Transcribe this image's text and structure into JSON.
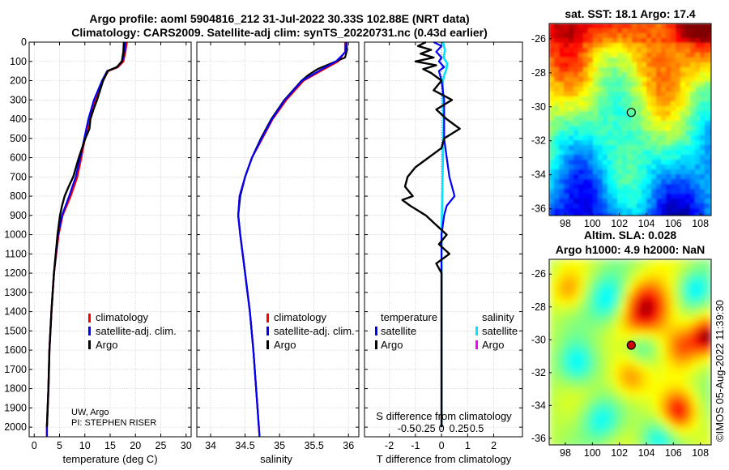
{
  "title_line1": "Argo profile: aoml 5904816_212 31-Jul-2022 30.33S 102.88E (NRT data)",
  "title_line2": "Climatology: CARS2009. Satellite-adj clim: synTS_20220731.nc (0.43d earlier)",
  "colors": {
    "climatology": "#ff0000",
    "satellite": "#0000ff",
    "argo": "#000000",
    "satellite_s": "#00e5ff",
    "argo_s": "#ff00ff"
  },
  "chart_data": [
    {
      "id": "temperature",
      "type": "line",
      "xlabel": "temperature (deg C)",
      "ylabel": "",
      "xlim": [
        -1,
        31
      ],
      "ylim": [
        2050,
        0
      ],
      "xticks": [
        0,
        5,
        10,
        15,
        20,
        25,
        30
      ],
      "yticks": [
        0,
        100,
        200,
        300,
        400,
        500,
        600,
        700,
        800,
        900,
        1000,
        1100,
        1200,
        1300,
        1400,
        1500,
        1600,
        1700,
        1800,
        1900,
        2000
      ],
      "legend": [
        "climatology",
        "satellite-adj. clim.",
        "Argo"
      ],
      "annotation_line1": "UW, Argo",
      "annotation_line2": "PI: STEPHEN RISER",
      "series": [
        {
          "name": "climatology",
          "depth": [
            0,
            50,
            100,
            130,
            150,
            200,
            300,
            400,
            500,
            600,
            700,
            800,
            900,
            1000,
            1200,
            1400,
            1600,
            1800,
            2000,
            2050
          ],
          "values": [
            18.3,
            18.0,
            17.6,
            16.5,
            14.6,
            13.6,
            12.0,
            10.9,
            10.0,
            9.3,
            8.5,
            7.2,
            5.6,
            4.8,
            3.9,
            3.4,
            3.0,
            2.8,
            2.5,
            2.5
          ]
        },
        {
          "name": "satellite-adj. clim.",
          "depth": [
            0,
            50,
            100,
            130,
            150,
            200,
            300,
            400,
            500,
            600,
            700,
            800,
            900,
            1000,
            1200,
            1400,
            1600,
            1800,
            2000,
            2050
          ],
          "values": [
            18.0,
            17.8,
            17.4,
            16.3,
            14.4,
            13.4,
            11.8,
            10.7,
            9.9,
            9.1,
            8.2,
            6.9,
            5.5,
            4.7,
            3.9,
            3.4,
            3.0,
            2.8,
            2.5,
            2.5
          ]
        },
        {
          "name": "Argo",
          "depth": [
            0,
            50,
            100,
            130,
            150,
            200,
            300,
            350,
            400,
            450,
            500,
            600,
            700,
            750,
            800,
            850,
            900,
            1000,
            1200,
            1400,
            1600,
            1800,
            2000
          ],
          "values": [
            17.7,
            17.6,
            17.3,
            16.3,
            14.5,
            13.6,
            12.4,
            11.7,
            11.1,
            10.9,
            10.1,
            8.8,
            7.7,
            6.8,
            6.0,
            5.5,
            5.1,
            4.6,
            3.9,
            3.4,
            3.0,
            2.8,
            2.5
          ]
        }
      ]
    },
    {
      "id": "salinity",
      "type": "line",
      "xlabel": "salinity",
      "ylabel": "",
      "xlim": [
        33.8,
        36.15
      ],
      "ylim": [
        2050,
        0
      ],
      "xticks": [
        34,
        34.5,
        35,
        35.5,
        36
      ],
      "legend": [
        "climatology",
        "satellite-adj. clim.",
        "Argo"
      ],
      "series": [
        {
          "name": "climatology",
          "depth": [
            0,
            50,
            100,
            150,
            200,
            300,
            400,
            500,
            600,
            700,
            800,
            900,
            1000,
            1200,
            1400,
            1600,
            1800,
            2000,
            2050
          ],
          "values": [
            35.95,
            35.95,
            35.85,
            35.6,
            35.35,
            35.1,
            34.9,
            34.75,
            34.6,
            34.5,
            34.42,
            34.4,
            34.43,
            34.5,
            34.57,
            34.62,
            34.66,
            34.7,
            34.71
          ]
        },
        {
          "name": "satellite-adj. clim.",
          "depth": [
            0,
            50,
            100,
            150,
            200,
            300,
            400,
            500,
            600,
            700,
            800,
            900,
            1000,
            1200,
            1400,
            1600,
            1800,
            2000,
            2050
          ],
          "values": [
            35.97,
            35.96,
            35.82,
            35.57,
            35.33,
            35.08,
            34.89,
            34.74,
            34.6,
            34.5,
            34.42,
            34.4,
            34.43,
            34.5,
            34.57,
            34.62,
            34.66,
            34.7,
            34.71
          ]
        },
        {
          "name": "Argo",
          "depth": [
            0,
            40,
            80,
            110,
            140,
            170,
            200,
            300,
            400,
            500,
            600,
            700,
            800,
            900,
            1000,
            1200,
            1400,
            1600,
            1800,
            2000
          ],
          "values": [
            35.97,
            35.98,
            35.95,
            35.75,
            35.55,
            35.42,
            35.32,
            35.07,
            34.88,
            34.73,
            34.6,
            34.5,
            34.43,
            34.4,
            34.43,
            34.5,
            34.57,
            34.62,
            34.66,
            34.7
          ]
        }
      ]
    },
    {
      "id": "difference",
      "type": "line",
      "xlabel": "T difference from climatology",
      "xlabel_top": "S difference from climatology",
      "xlim": [
        -2.95,
        3.1
      ],
      "ylim": [
        2050,
        0
      ],
      "xticks": [
        -2,
        -1,
        0,
        1,
        2
      ],
      "xticks_s": [
        -0.5,
        -0.25,
        0,
        0.25,
        0.5
      ],
      "xticks_s_labels": [
        "-0.5",
        "-0.25",
        "0",
        "0.25",
        "0.5"
      ],
      "legend_temperature_title": "temperature",
      "legend_salinity_title": "salinity",
      "legend_temperature": [
        "satellite",
        "Argo"
      ],
      "legend_salinity": [
        "satellite",
        "Argo"
      ],
      "series": [
        {
          "name": "T satellite",
          "depth": [
            0,
            20,
            50,
            80,
            100,
            130,
            150,
            200,
            300,
            400,
            500,
            600,
            700,
            800,
            850,
            900,
            1000,
            1200,
            1400,
            1600,
            1800,
            2000
          ],
          "values": [
            -0.3,
            0.0,
            -0.2,
            0.0,
            -0.1,
            0.1,
            -0.1,
            0.0,
            0.1,
            0.1,
            0.1,
            0.2,
            0.3,
            0.5,
            0.2,
            0.1,
            0.0,
            0.0,
            0.0,
            0.0,
            0.0,
            0.0
          ]
        },
        {
          "name": "T Argo",
          "depth": [
            0,
            20,
            40,
            60,
            80,
            100,
            120,
            140,
            160,
            200,
            250,
            300,
            350,
            400,
            450,
            500,
            550,
            600,
            650,
            700,
            750,
            800,
            820,
            850,
            900,
            950,
            1000,
            1050,
            1100,
            1150,
            1200,
            1300,
            1400,
            1600,
            1800,
            2000
          ],
          "values": [
            -0.6,
            -0.9,
            -0.4,
            -0.8,
            -0.3,
            -1.0,
            -0.2,
            -0.7,
            -0.4,
            0.0,
            -0.3,
            0.4,
            -0.2,
            0.2,
            0.7,
            0.1,
            0.0,
            -0.5,
            -1.0,
            -1.3,
            -1.4,
            -1.1,
            -1.5,
            -1.2,
            -0.6,
            -0.2,
            0.2,
            -0.1,
            0.3,
            -0.2,
            0.0,
            0.0,
            0.0,
            0.0,
            0.0,
            0.0
          ]
        },
        {
          "name": "S satellite",
          "depth": [
            0,
            40,
            80,
            110,
            140,
            170,
            200,
            300,
            400,
            600,
            800,
            1000,
            1200,
            1500,
            2000
          ],
          "values": [
            0.02,
            0.05,
            0.03,
            0.08,
            0.07,
            0.04,
            0.02,
            0.02,
            0.03,
            0.02,
            0.01,
            0.0,
            0.0,
            0.0,
            0.0
          ]
        }
      ]
    },
    {
      "id": "sst_map",
      "type": "heatmap",
      "title": "sat. SST: 18.1 Argo: 17.4",
      "xlim": [
        96.8,
        108.8
      ],
      "ylim": [
        -36.4,
        -25.1
      ],
      "xticks": [
        98,
        100,
        102,
        104,
        106,
        108
      ],
      "yticks": [
        -26,
        -28,
        -30,
        -32,
        -34,
        -36
      ],
      "marker": {
        "lon": 102.88,
        "lat": -30.33
      }
    },
    {
      "id": "sla_map",
      "type": "heatmap",
      "title_line1": "Altim. SLA: 0.028",
      "title_line2": "Argo h1000: 4.9 h2000: NaN",
      "xlim": [
        96.8,
        108.8
      ],
      "ylim": [
        -36.4,
        -25.1
      ],
      "xticks": [
        98,
        100,
        102,
        104,
        106,
        108
      ],
      "yticks": [
        -26,
        -28,
        -30,
        -32,
        -34,
        -36
      ],
      "marker": {
        "lon": 102.88,
        "lat": -30.33
      }
    }
  ],
  "credit": "©IMOS 05-Aug-2022 11:39:30"
}
